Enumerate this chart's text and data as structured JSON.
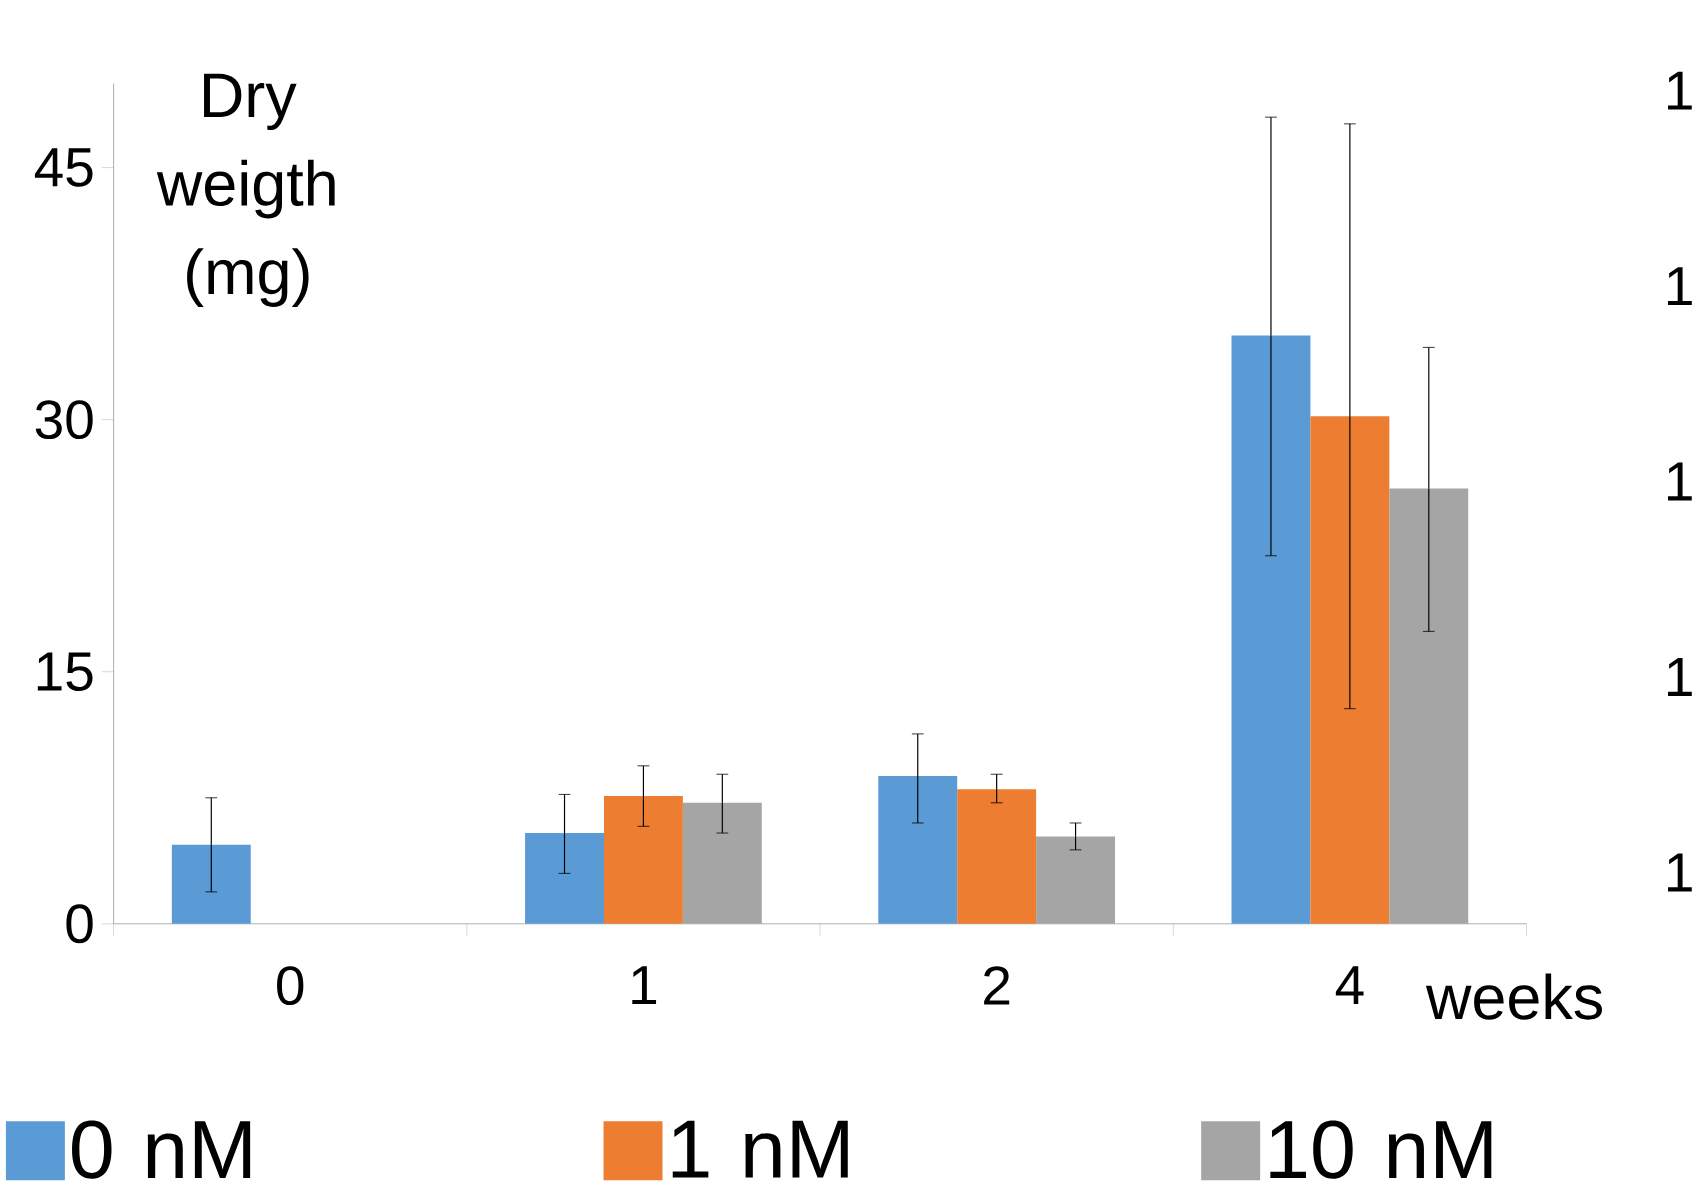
{
  "chart_data": {
    "type": "bar",
    "ylabel": "Dry weigth (mg)",
    "xlabel": "weeks",
    "categories": [
      "0",
      "1",
      "2",
      "4"
    ],
    "ylim": [
      0,
      50
    ],
    "yticks": [
      0,
      15,
      30,
      45
    ],
    "annotations": [
      "1",
      "1",
      "1",
      "1",
      "1"
    ],
    "legend": "bottom",
    "grid": false,
    "series": [
      {
        "name": "0 nM",
        "color": "#5b9bd5",
        "values": [
          4.7,
          5.4,
          8.8,
          35.0
        ],
        "errors": [
          [
            1.9,
            7.5
          ],
          [
            3.0,
            7.7
          ],
          [
            6.0,
            11.3
          ],
          [
            21.9,
            48.0
          ]
        ]
      },
      {
        "name": "1 nM",
        "color": "#ed7d31",
        "values": [
          null,
          7.6,
          8.0,
          30.2
        ],
        "errors": [
          null,
          [
            5.8,
            9.4
          ],
          [
            7.2,
            8.9
          ],
          [
            12.8,
            47.6
          ]
        ]
      },
      {
        "name": "10 nM",
        "color": "#a5a5a5",
        "values": [
          null,
          7.2,
          5.2,
          25.9
        ],
        "errors": [
          null,
          [
            5.4,
            8.9
          ],
          [
            4.4,
            6.0
          ],
          [
            17.4,
            34.3
          ]
        ]
      }
    ]
  }
}
